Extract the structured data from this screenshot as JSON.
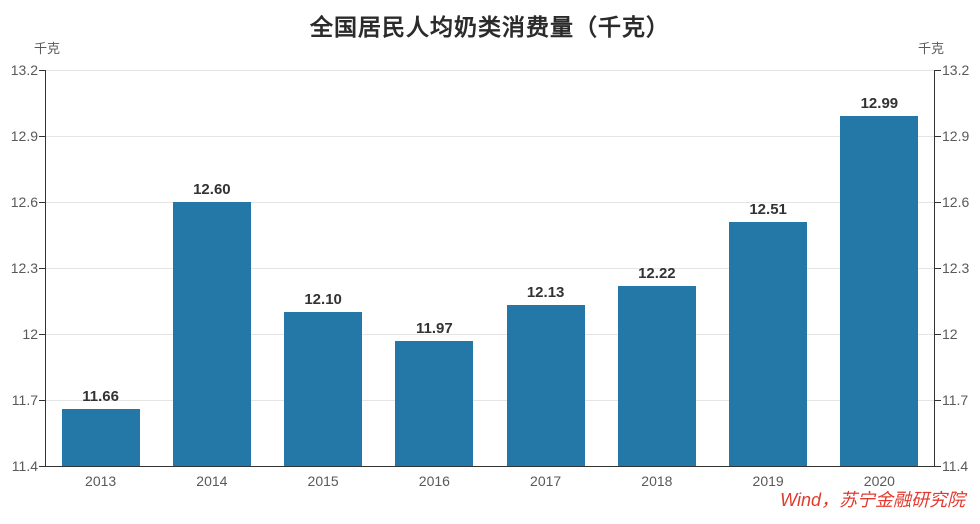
{
  "title": "全国居民人均奶类消费量（千克）",
  "unit_left": "千克",
  "unit_right": "千克",
  "source": "Wind，苏宁金融研究院",
  "colors": {
    "bar": "#2478a7",
    "title": "#2b2b2b",
    "tick_label": "#595959",
    "data_label": "#333333",
    "grid_line": "#e4e4e4",
    "axis_line": "#333333",
    "source_text": "#e23a2e",
    "background": "#ffffff"
  },
  "chart_data": {
    "type": "bar",
    "title": "全国居民人均奶类消费量（千克）",
    "categories": [
      "2013",
      "2014",
      "2015",
      "2016",
      "2017",
      "2018",
      "2019",
      "2020"
    ],
    "values": [
      11.66,
      12.6,
      12.1,
      11.97,
      12.13,
      12.22,
      12.51,
      12.99
    ],
    "data_labels": [
      "11.66",
      "12.60",
      "12.10",
      "11.97",
      "12.13",
      "12.22",
      "12.51",
      "12.99"
    ],
    "xlabel": "",
    "ylabel": "千克",
    "ylabel_right": "千克",
    "ylim": [
      11.4,
      13.2
    ],
    "ytick_interval": 0.3,
    "yticks": [
      11.4,
      11.7,
      12,
      12.3,
      12.6,
      12.9,
      13.2
    ],
    "ytick_labels": [
      "11.4",
      "11.7",
      "12",
      "12.3",
      "12.6",
      "12.9",
      "13.2"
    ],
    "grid": true,
    "dual_y_axis": true,
    "legend_position": "none",
    "source_note": "Wind，苏宁金融研究院"
  }
}
